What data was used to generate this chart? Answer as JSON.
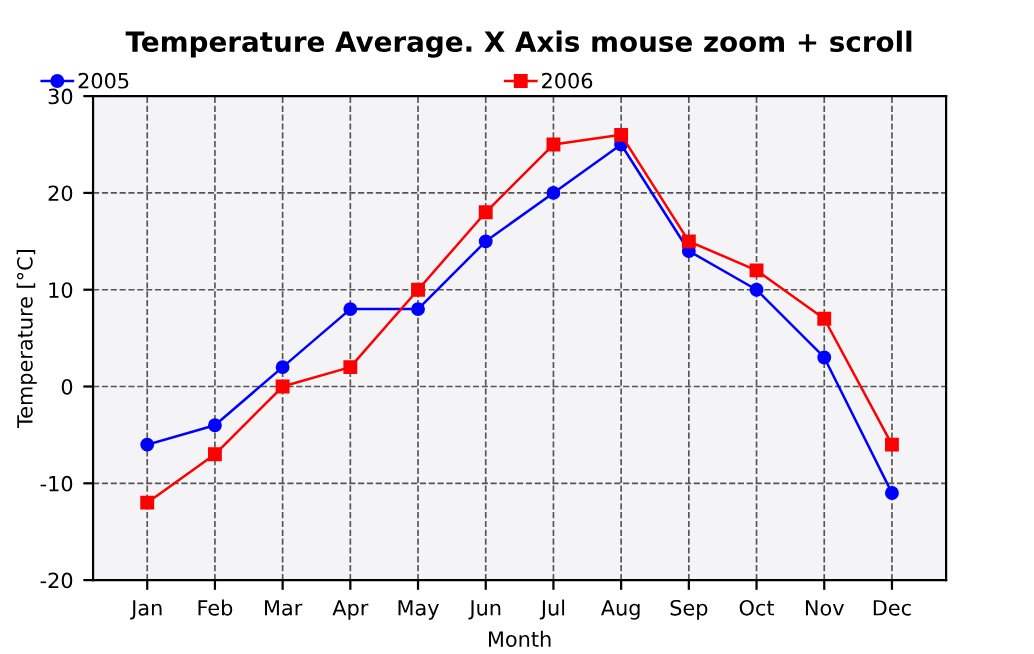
{
  "chart_data": {
    "type": "line",
    "title": "Temperature Average. X Axis mouse zoom + scroll",
    "xlabel": "Month",
    "ylabel": "Temperature [°C]",
    "categories": [
      "Jan",
      "Feb",
      "Mar",
      "Apr",
      "May",
      "Jun",
      "Jul",
      "Aug",
      "Sep",
      "Oct",
      "Nov",
      "Dec"
    ],
    "series": [
      {
        "name": "2005",
        "color": "#0000ff",
        "marker": "circle",
        "values": [
          -6,
          -4,
          2,
          8,
          8,
          15,
          20,
          25,
          14,
          10,
          3,
          -11
        ]
      },
      {
        "name": "2006",
        "color": "#ff0000",
        "marker": "square",
        "values": [
          -12,
          -7,
          0,
          2,
          10,
          18,
          25,
          26,
          15,
          12,
          7,
          -6
        ]
      }
    ],
    "ylim": [
      -20,
      30
    ],
    "yticks": [
      -20,
      -10,
      0,
      10,
      20,
      30
    ],
    "grid": true,
    "legend": "top",
    "line_style": "solid"
  }
}
